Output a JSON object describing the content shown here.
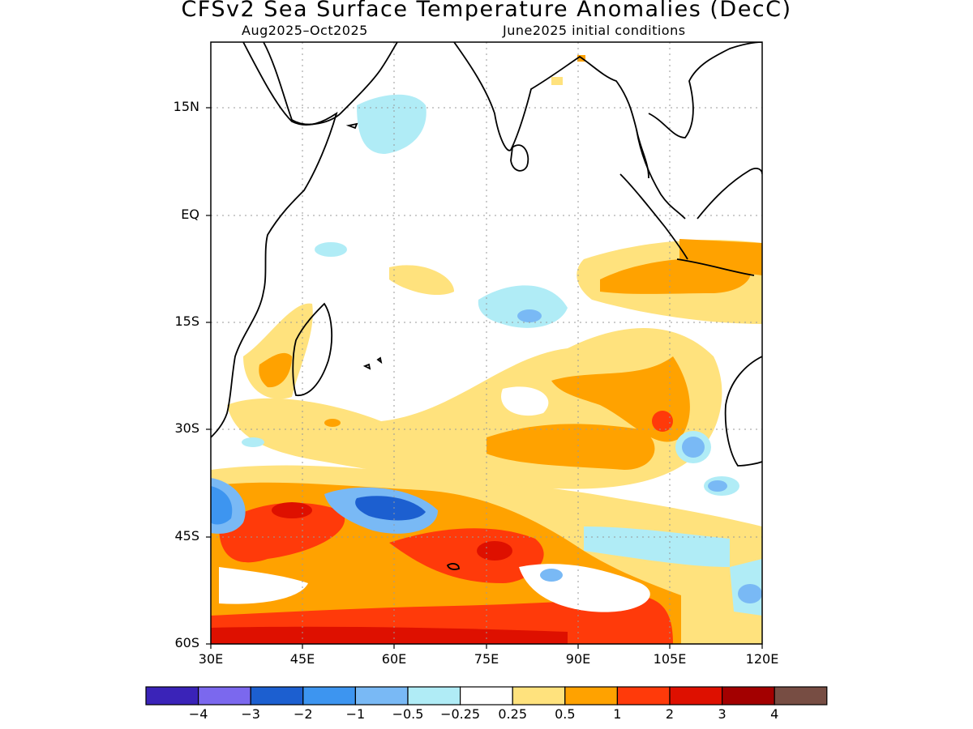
{
  "title": "CFSv2 Sea Surface Temperature Anomalies (DecC)",
  "subtitle_left": "Aug2025–Oct2025",
  "subtitle_right": "June2025 initial conditions",
  "lat_labels": [
    "15N",
    "EQ",
    "15S",
    "30S",
    "45S",
    "60S"
  ],
  "lon_labels": [
    "30E",
    "45E",
    "60E",
    "75E",
    "90E",
    "105E",
    "120E"
  ],
  "colorbar": {
    "colors": [
      "#3a23b8",
      "#7b68ee",
      "#1c5fd0",
      "#3d95f0",
      "#79b9f5",
      "#b0ecf6",
      "#ffffff",
      "#ffe27d",
      "#ffa200",
      "#ff3a0a",
      "#de1000",
      "#a30000",
      "#774d43"
    ],
    "labels": [
      "−4",
      "−3",
      "−2",
      "−1",
      "−0.5",
      "−0.25",
      "0.25",
      "0.5",
      "1",
      "2",
      "3",
      "4"
    ]
  }
}
